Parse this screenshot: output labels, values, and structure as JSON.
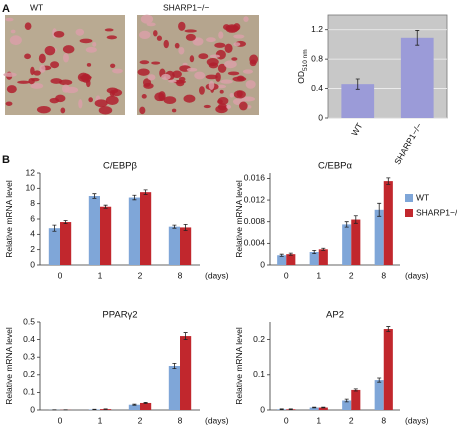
{
  "panels": {
    "a": "A",
    "b": "B"
  },
  "images": [
    {
      "label": "WT"
    },
    {
      "label": "SHARP1−/−"
    }
  ],
  "chart_data": [
    {
      "type": "bar",
      "y_label": "OD",
      "y_label_sub": "510 nm",
      "categories": [
        "WT",
        "SHARP1−/−"
      ],
      "values": [
        0.46,
        1.09
      ],
      "errors": [
        0.07,
        0.1
      ],
      "color": "#9b9bd8",
      "ylim": [
        0,
        1.4
      ],
      "yticks": [
        0,
        0.4,
        0.8,
        1.2
      ],
      "grid": true,
      "background": "#c8c8c8"
    },
    {
      "type": "bar",
      "title": "C/EBPβ",
      "y_label": "Relative mRNA level",
      "x_unit": "(days)",
      "categories": [
        "0",
        "1",
        "2",
        "8"
      ],
      "series": [
        {
          "color": "#7fa6d8",
          "values": [
            4.8,
            9.0,
            8.8,
            5.0
          ],
          "errors": [
            0.4,
            0.3,
            0.3,
            0.2
          ]
        },
        {
          "color": "#c1272d",
          "values": [
            5.6,
            7.6,
            9.5,
            4.9
          ],
          "errors": [
            0.2,
            0.2,
            0.3,
            0.4
          ]
        }
      ],
      "ylim": [
        0,
        12
      ],
      "yticks": [
        0,
        2,
        4,
        6,
        8,
        10,
        12
      ],
      "grid": false
    },
    {
      "type": "bar",
      "title": "C/EBPα",
      "y_label": "Relative mRNA level",
      "x_unit": "(days)",
      "categories": [
        "0",
        "1",
        "2",
        "8"
      ],
      "series": [
        {
          "name": "WT",
          "color": "#7fa6d8",
          "values": [
            0.0018,
            0.0024,
            0.0075,
            0.0102
          ],
          "errors": [
            0.0002,
            0.0003,
            0.0005,
            0.0012
          ]
        },
        {
          "name": "SHARP1−/−",
          "color": "#c1272d",
          "values": [
            0.002,
            0.0029,
            0.0084,
            0.0155
          ],
          "errors": [
            0.0002,
            0.0002,
            0.0007,
            0.0006
          ]
        }
      ],
      "ylim": [
        0,
        0.017
      ],
      "yticks": [
        0,
        0.004,
        0.008,
        0.012,
        0.016
      ],
      "grid": false,
      "legend": "right"
    },
    {
      "type": "bar",
      "title": "PPARγ2",
      "y_label": "Relative mRNA level",
      "x_unit": "(days)",
      "categories": [
        "0",
        "1",
        "2",
        "8"
      ],
      "series": [
        {
          "color": "#7fa6d8",
          "values": [
            0.001,
            0.003,
            0.03,
            0.25
          ],
          "errors": [
            0.0005,
            0.001,
            0.003,
            0.015
          ]
        },
        {
          "color": "#c1272d",
          "values": [
            0.001,
            0.005,
            0.04,
            0.42
          ],
          "errors": [
            0.0005,
            0.001,
            0.003,
            0.02
          ]
        }
      ],
      "ylim": [
        0,
        0.5
      ],
      "yticks": [
        0,
        0.1,
        0.2,
        0.3,
        0.4,
        0.5
      ],
      "grid": false
    },
    {
      "type": "bar",
      "title": "AP2",
      "y_label": "Relative mRNA level",
      "x_unit": "(days)",
      "categories": [
        "0",
        "1",
        "2",
        "8"
      ],
      "series": [
        {
          "color": "#7fa6d8",
          "values": [
            0.002,
            0.007,
            0.027,
            0.085
          ],
          "errors": [
            0.001,
            0.001,
            0.004,
            0.006
          ]
        },
        {
          "color": "#c1272d",
          "values": [
            0.002,
            0.007,
            0.057,
            0.23
          ],
          "errors": [
            0.001,
            0.001,
            0.003,
            0.007
          ]
        }
      ],
      "ylim": [
        0,
        0.25
      ],
      "yticks": [
        0,
        0.1,
        0.2
      ],
      "grid": false
    }
  ]
}
